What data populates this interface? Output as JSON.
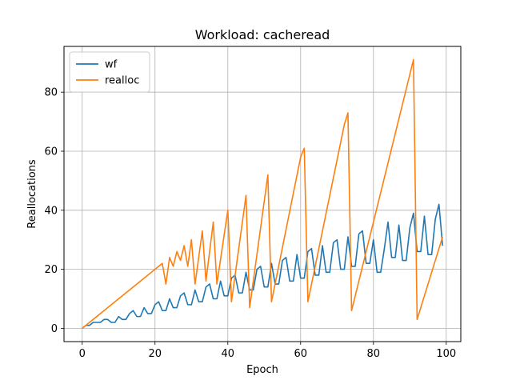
{
  "chart_data": {
    "type": "line",
    "title": "Workload: cacheread",
    "xlabel": "Epoch",
    "ylabel": "Reallocations",
    "xlim": [
      -5,
      104
    ],
    "ylim": [
      -4.5,
      95.5
    ],
    "xticks": [
      0,
      20,
      40,
      60,
      80,
      100
    ],
    "yticks": [
      0,
      20,
      40,
      60,
      80
    ],
    "grid": true,
    "legend_position": "top-left",
    "series": [
      {
        "name": "wf",
        "color": "#1f77b4",
        "x": [
          0,
          1,
          2,
          3,
          4,
          5,
          6,
          7,
          8,
          9,
          10,
          11,
          12,
          13,
          14,
          15,
          16,
          17,
          18,
          19,
          20,
          21,
          22,
          23,
          24,
          25,
          26,
          27,
          28,
          29,
          30,
          31,
          32,
          33,
          34,
          35,
          36,
          37,
          38,
          39,
          40,
          41,
          42,
          43,
          44,
          45,
          46,
          47,
          48,
          49,
          50,
          51,
          52,
          53,
          54,
          55,
          56,
          57,
          58,
          59,
          60,
          61,
          62,
          63,
          64,
          65,
          66,
          67,
          68,
          69,
          70,
          71,
          72,
          73,
          74,
          75,
          76,
          77,
          78,
          79,
          80,
          81,
          82,
          83,
          84,
          85,
          86,
          87,
          88,
          89,
          90,
          91,
          92,
          93,
          94,
          95,
          96,
          97,
          98,
          99
        ],
        "y": [
          0,
          1,
          1,
          2,
          2,
          2,
          3,
          3,
          2,
          2,
          4,
          3,
          3,
          5,
          6,
          4,
          4,
          7,
          5,
          5,
          8,
          9,
          6,
          6,
          10,
          7,
          7,
          11,
          12,
          8,
          8,
          13,
          9,
          9,
          14,
          15,
          10,
          10,
          16,
          11,
          11,
          17,
          18,
          12,
          12,
          19,
          13,
          13,
          20,
          21,
          14,
          14,
          22,
          15,
          15,
          23,
          24,
          16,
          16,
          25,
          17,
          17,
          26,
          27,
          18,
          18,
          28,
          19,
          19,
          29,
          30,
          20,
          20,
          31,
          21,
          21,
          32,
          33,
          22,
          22,
          30,
          19,
          19,
          27,
          36,
          24,
          24,
          35,
          23,
          23,
          34,
          39,
          26,
          26,
          38,
          25,
          25,
          37,
          42,
          28
        ]
      },
      {
        "name": "realloc",
        "color": "#ff7f0e",
        "x": [
          0,
          22,
          23,
          24,
          25,
          26,
          27,
          28,
          29,
          30,
          31,
          33,
          34,
          36,
          37,
          40,
          41,
          45,
          46,
          51,
          52,
          60,
          61,
          62,
          72,
          73,
          74,
          91,
          92,
          99
        ],
        "y": [
          0,
          22,
          15,
          24,
          21,
          26,
          23,
          28,
          21,
          30,
          15,
          33,
          16,
          36,
          15,
          40,
          9,
          45,
          7,
          52,
          9,
          58,
          61,
          9,
          69,
          73,
          6,
          91,
          3,
          31
        ]
      }
    ]
  }
}
